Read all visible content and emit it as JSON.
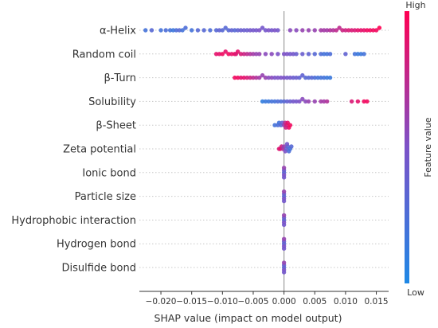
{
  "chart_data": {
    "type": "scatter",
    "subtype": "shap-beeswarm",
    "xlabel": "SHAP value (impact on model output)",
    "xlim": [
      -0.0235,
      0.017
    ],
    "x_ticks": [
      -0.02,
      -0.015,
      -0.01,
      -0.005,
      0.0,
      0.005,
      0.01,
      0.015
    ],
    "x_tick_labels": [
      "−0.020",
      "−0.015",
      "−0.010",
      "−0.005",
      "0.000",
      "0.005",
      "0.010",
      "0.015"
    ],
    "grid": "horizontal dotted row lines",
    "zero_line": true,
    "colorbar": {
      "label": "Feature value",
      "high": "High",
      "low": "Low",
      "low_color": "#1e88e5",
      "high_color": "#ff0052",
      "placement": "right"
    },
    "features": [
      {
        "name": "α-Helix",
        "points": [
          [
            -0.0225,
            0.2
          ],
          [
            -0.0215,
            0.3
          ],
          [
            -0.02,
            0.2
          ],
          [
            -0.0192,
            0.25
          ],
          [
            -0.0185,
            0.2
          ],
          [
            -0.018,
            0.15
          ],
          [
            -0.0175,
            0.25
          ],
          [
            -0.017,
            0.3
          ],
          [
            -0.0165,
            0.2
          ],
          [
            -0.016,
            0.25
          ],
          [
            -0.015,
            0.2
          ],
          [
            -0.014,
            0.3
          ],
          [
            -0.013,
            0.3
          ],
          [
            -0.012,
            0.25
          ],
          [
            -0.011,
            0.3
          ],
          [
            -0.0105,
            0.35
          ],
          [
            -0.01,
            0.3
          ],
          [
            -0.0095,
            0.3
          ],
          [
            -0.009,
            0.3
          ],
          [
            -0.0085,
            0.35
          ],
          [
            -0.008,
            0.3
          ],
          [
            -0.0075,
            0.35
          ],
          [
            -0.007,
            0.4
          ],
          [
            -0.0065,
            0.4
          ],
          [
            -0.006,
            0.4
          ],
          [
            -0.0055,
            0.45
          ],
          [
            -0.005,
            0.45
          ],
          [
            -0.0045,
            0.45
          ],
          [
            -0.004,
            0.5
          ],
          [
            -0.0035,
            0.45
          ],
          [
            -0.003,
            0.45
          ],
          [
            -0.0025,
            0.5
          ],
          [
            -0.002,
            0.45
          ],
          [
            -0.0015,
            0.5
          ],
          [
            -0.001,
            0.45
          ],
          [
            0.001,
            0.55
          ],
          [
            0.002,
            0.55
          ],
          [
            0.003,
            0.6
          ],
          [
            0.004,
            0.6
          ],
          [
            0.005,
            0.6
          ],
          [
            0.006,
            0.65
          ],
          [
            0.0065,
            0.65
          ],
          [
            0.007,
            0.65
          ],
          [
            0.0075,
            0.7
          ],
          [
            0.008,
            0.7
          ],
          [
            0.0085,
            0.75
          ],
          [
            0.009,
            0.75
          ],
          [
            0.0095,
            0.8
          ],
          [
            0.01,
            0.8
          ],
          [
            0.0105,
            0.85
          ],
          [
            0.011,
            0.85
          ],
          [
            0.0115,
            0.85
          ],
          [
            0.012,
            0.9
          ],
          [
            0.0125,
            0.9
          ],
          [
            0.013,
            0.9
          ],
          [
            0.0135,
            0.95
          ],
          [
            0.014,
            0.95
          ],
          [
            0.0145,
            0.95
          ],
          [
            0.015,
            0.95
          ],
          [
            0.0155,
            1.0
          ]
        ]
      },
      {
        "name": "Random coil",
        "points": [
          [
            -0.011,
            0.9
          ],
          [
            -0.0105,
            0.9
          ],
          [
            -0.01,
            0.95
          ],
          [
            -0.0095,
            0.9
          ],
          [
            -0.009,
            0.95
          ],
          [
            -0.0085,
            0.9
          ],
          [
            -0.008,
            0.95
          ],
          [
            -0.0078,
            0.85
          ],
          [
            -0.0075,
            0.9
          ],
          [
            -0.007,
            0.85
          ],
          [
            -0.0065,
            0.8
          ],
          [
            -0.006,
            0.75
          ],
          [
            -0.0055,
            0.7
          ],
          [
            -0.005,
            0.65
          ],
          [
            -0.0045,
            0.6
          ],
          [
            -0.004,
            0.6
          ],
          [
            -0.003,
            0.55
          ],
          [
            -0.002,
            0.55
          ],
          [
            -0.001,
            0.5
          ],
          [
            0.0,
            0.5
          ],
          [
            0.0005,
            0.5
          ],
          [
            0.001,
            0.45
          ],
          [
            0.0015,
            0.45
          ],
          [
            0.002,
            0.4
          ],
          [
            0.003,
            0.4
          ],
          [
            0.004,
            0.35
          ],
          [
            0.005,
            0.3
          ],
          [
            0.006,
            0.25
          ],
          [
            0.0065,
            0.2
          ],
          [
            0.007,
            0.2
          ],
          [
            0.0075,
            0.25
          ],
          [
            0.01,
            0.35
          ],
          [
            0.0115,
            0.2
          ],
          [
            0.012,
            0.15
          ],
          [
            0.0125,
            0.15
          ],
          [
            0.013,
            0.2
          ]
        ]
      },
      {
        "name": "β-Turn",
        "points": [
          [
            -0.008,
            0.95
          ],
          [
            -0.0075,
            0.95
          ],
          [
            -0.007,
            0.9
          ],
          [
            -0.0065,
            0.9
          ],
          [
            -0.006,
            0.85
          ],
          [
            -0.0055,
            0.8
          ],
          [
            -0.005,
            0.75
          ],
          [
            -0.0045,
            0.7
          ],
          [
            -0.004,
            0.65
          ],
          [
            -0.0035,
            0.6
          ],
          [
            -0.003,
            0.6
          ],
          [
            -0.0025,
            0.55
          ],
          [
            -0.002,
            0.55
          ],
          [
            -0.0015,
            0.5
          ],
          [
            -0.001,
            0.5
          ],
          [
            -0.0005,
            0.5
          ],
          [
            0.0,
            0.5
          ],
          [
            0.0005,
            0.45
          ],
          [
            0.001,
            0.45
          ],
          [
            0.0015,
            0.4
          ],
          [
            0.002,
            0.4
          ],
          [
            0.0025,
            0.35
          ],
          [
            0.003,
            0.35
          ],
          [
            0.0035,
            0.3
          ],
          [
            0.004,
            0.3
          ],
          [
            0.0045,
            0.3
          ],
          [
            0.005,
            0.25
          ],
          [
            0.0055,
            0.2
          ],
          [
            0.006,
            0.2
          ],
          [
            0.0065,
            0.2
          ],
          [
            0.007,
            0.15
          ],
          [
            0.0075,
            0.15
          ]
        ]
      },
      {
        "name": "Solubility",
        "points": [
          [
            -0.0035,
            0.1
          ],
          [
            -0.003,
            0.15
          ],
          [
            -0.0025,
            0.15
          ],
          [
            -0.002,
            0.2
          ],
          [
            -0.0015,
            0.2
          ],
          [
            -0.001,
            0.25
          ],
          [
            -0.0005,
            0.25
          ],
          [
            0.0,
            0.3
          ],
          [
            0.0005,
            0.35
          ],
          [
            0.001,
            0.4
          ],
          [
            0.0015,
            0.45
          ],
          [
            0.002,
            0.45
          ],
          [
            0.0025,
            0.5
          ],
          [
            0.003,
            0.55
          ],
          [
            0.0035,
            0.55
          ],
          [
            0.004,
            0.6
          ],
          [
            0.005,
            0.6
          ],
          [
            0.006,
            0.65
          ],
          [
            0.0065,
            0.65
          ],
          [
            0.007,
            0.7
          ],
          [
            0.011,
            0.85
          ],
          [
            0.012,
            0.9
          ],
          [
            0.013,
            0.95
          ],
          [
            0.0135,
            0.95
          ]
        ]
      },
      {
        "name": "β-Sheet",
        "points": [
          [
            -0.0015,
            0.2
          ],
          [
            -0.001,
            0.25
          ],
          [
            -0.0008,
            0.2
          ],
          [
            -0.0005,
            0.3
          ],
          [
            -0.0003,
            0.4
          ],
          [
            0.0,
            0.6
          ],
          [
            0.0002,
            0.75
          ],
          [
            0.0004,
            0.85
          ],
          [
            0.0006,
            0.9
          ],
          [
            0.0008,
            0.95
          ],
          [
            0.001,
            0.95
          ],
          [
            0.0003,
            0.8
          ]
        ]
      },
      {
        "name": "Zeta potential",
        "points": [
          [
            -0.0008,
            0.85
          ],
          [
            -0.0006,
            0.9
          ],
          [
            -0.0004,
            0.8
          ],
          [
            -0.0002,
            0.7
          ],
          [
            0.0,
            0.6
          ],
          [
            0.0002,
            0.5
          ],
          [
            0.0004,
            0.4
          ],
          [
            0.0006,
            0.3
          ],
          [
            0.0008,
            0.25
          ],
          [
            0.001,
            0.2
          ],
          [
            0.0012,
            0.3
          ],
          [
            0.0005,
            0.45
          ]
        ]
      },
      {
        "name": "Ionic bond",
        "points": [
          [
            0.0,
            0.3
          ],
          [
            0.0,
            0.4
          ],
          [
            0.0,
            0.5
          ],
          [
            0.0,
            0.6
          ],
          [
            0.0,
            0.45
          ]
        ]
      },
      {
        "name": "Particle size",
        "points": [
          [
            0.0,
            0.3
          ],
          [
            0.0,
            0.4
          ],
          [
            0.0,
            0.5
          ],
          [
            0.0,
            0.6
          ],
          [
            0.0,
            0.45
          ]
        ]
      },
      {
        "name": "Hydrophobic interaction",
        "points": [
          [
            0.0,
            0.3
          ],
          [
            0.0,
            0.4
          ],
          [
            0.0,
            0.5
          ],
          [
            0.0,
            0.6
          ],
          [
            0.0,
            0.45
          ]
        ]
      },
      {
        "name": "Hydrogen bond",
        "points": [
          [
            0.0,
            0.3
          ],
          [
            0.0,
            0.4
          ],
          [
            0.0,
            0.5
          ],
          [
            0.0,
            0.6
          ],
          [
            0.0,
            0.45
          ]
        ]
      },
      {
        "name": "Disulfide bond",
        "points": [
          [
            0.0,
            0.3
          ],
          [
            0.0,
            0.4
          ],
          [
            0.0,
            0.5
          ],
          [
            0.0,
            0.6
          ],
          [
            0.0,
            0.45
          ]
        ]
      }
    ]
  }
}
